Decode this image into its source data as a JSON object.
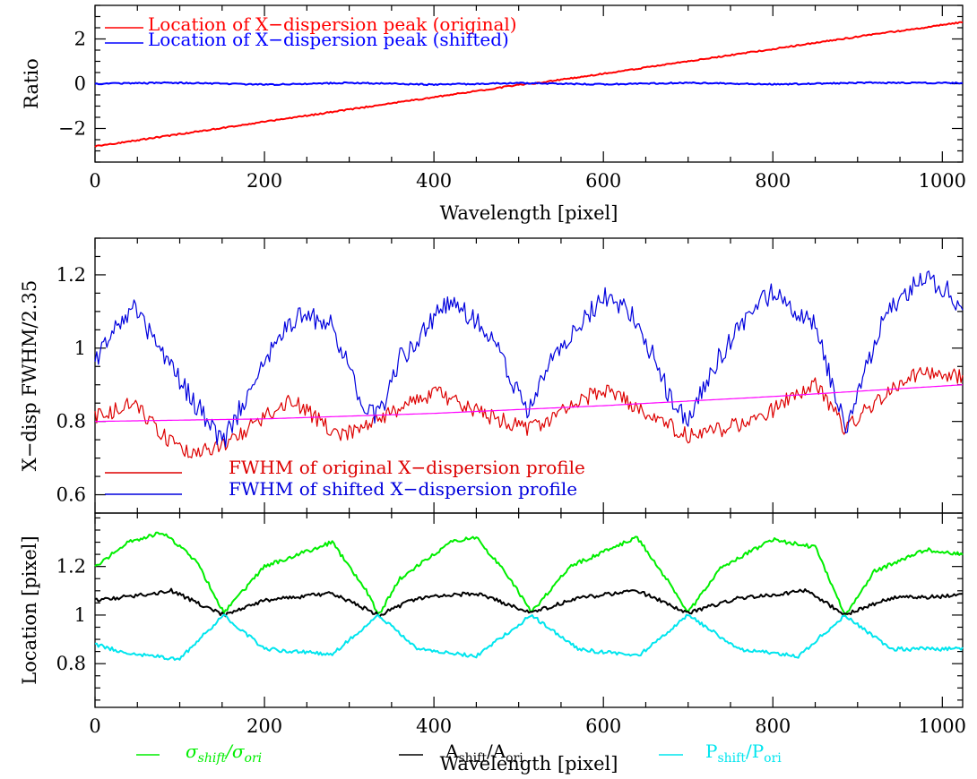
{
  "chart_data": [
    {
      "type": "line",
      "xlabel": "Wavelength [pixel]",
      "ylabel": "Ratio",
      "xlim": [
        0,
        1024
      ],
      "ylim": [
        -3.5,
        3.5
      ],
      "xticks": [
        0,
        200,
        400,
        600,
        800,
        1000
      ],
      "xtick_labels": [
        "0",
        "200",
        "400",
        "600",
        "800",
        "1000"
      ],
      "yticks": [
        -2,
        0,
        2
      ],
      "ytick_labels": [
        "−2",
        "0",
        "2"
      ],
      "legend_position": "top-left",
      "series": [
        {
          "name": "Location of X−dispersion peak (original)",
          "color": "#ff0000",
          "x": [
            0,
            100,
            200,
            300,
            400,
            500,
            515,
            600,
            700,
            800,
            900,
            1024
          ],
          "y": [
            -2.8,
            -2.25,
            -1.7,
            -1.15,
            -0.6,
            -0.05,
            0.0,
            0.45,
            1.0,
            1.55,
            2.1,
            2.75
          ]
        },
        {
          "name": "Location of X−dispersion peak (shifted)",
          "color": "#0000ff",
          "x": [
            0,
            100,
            200,
            300,
            400,
            500,
            600,
            700,
            800,
            900,
            1024
          ],
          "y": [
            0.0,
            0.04,
            -0.04,
            0.04,
            -0.04,
            0.03,
            -0.03,
            0.04,
            -0.03,
            0.04,
            0.03
          ]
        }
      ]
    },
    {
      "type": "line",
      "xlabel": "",
      "ylabel": "X−disp FWHM/2.35",
      "xlim": [
        0,
        1024
      ],
      "ylim": [
        0.55,
        1.3
      ],
      "yticks": [
        0.6,
        0.8,
        1.0,
        1.2
      ],
      "ytick_labels": [
        "0.6",
        "0.8",
        "1",
        "1.2"
      ],
      "legend_position": "bottom-left",
      "series": [
        {
          "name": "FWHM  of original X−dispersion profile",
          "color": "#dd0000",
          "x": [
            0,
            45,
            100,
            150,
            230,
            290,
            330,
            400,
            470,
            515,
            600,
            700,
            780,
            850,
            885,
            960,
            1024
          ],
          "y": [
            0.81,
            0.85,
            0.72,
            0.73,
            0.86,
            0.76,
            0.8,
            0.88,
            0.81,
            0.78,
            0.89,
            0.76,
            0.8,
            0.91,
            0.78,
            0.93,
            0.92
          ]
        },
        {
          "name": "FWHM  of shifted  X−dispersion profile",
          "color": "#0000dd",
          "x": [
            0,
            20,
            45,
            90,
            150,
            200,
            240,
            280,
            315,
            335,
            360,
            420,
            470,
            510,
            540,
            600,
            640,
            680,
            700,
            740,
            800,
            850,
            885,
            930,
            980,
            1024
          ],
          "y": [
            0.96,
            1.05,
            1.11,
            0.95,
            0.74,
            0.96,
            1.1,
            1.06,
            0.86,
            0.81,
            0.97,
            1.14,
            1.03,
            0.82,
            0.97,
            1.14,
            1.08,
            0.86,
            0.8,
            0.99,
            1.16,
            1.06,
            0.78,
            1.08,
            1.2,
            1.12
          ]
        },
        {
          "name": "",
          "color": "#ff00ff",
          "x": [
            0,
            200,
            400,
            600,
            800,
            1024
          ],
          "y": [
            0.8,
            0.807,
            0.822,
            0.843,
            0.868,
            0.9
          ]
        }
      ]
    },
    {
      "type": "line",
      "xlabel": "Wavelength [pixel]",
      "ylabel": "Location [pixel]",
      "xlim": [
        0,
        1024
      ],
      "ylim": [
        0.62,
        1.42
      ],
      "xticks": [
        0,
        200,
        400,
        600,
        800,
        1000
      ],
      "xtick_labels": [
        "0",
        "200",
        "400",
        "600",
        "800",
        "1000"
      ],
      "yticks": [
        0.8,
        1.0,
        1.2
      ],
      "ytick_labels": [
        "0.8",
        "1",
        "1.2"
      ],
      "legend_position": "bottom",
      "legend_labels": {
        "sigma": {
          "main1": "σ",
          "sub1": "shift",
          "mid": "/σ",
          "sub2": "ori"
        },
        "A": {
          "main1": "A",
          "sub1": "shift",
          "mid": "/A",
          "sub2": "ori"
        },
        "P": {
          "main1": "P",
          "sub1": "shift",
          "mid": "/P",
          "sub2": "ori"
        }
      },
      "series": [
        {
          "name": "σshift/σori",
          "color": "#00ee00",
          "x": [
            0,
            40,
            80,
            120,
            152,
            200,
            280,
            320,
            335,
            360,
            420,
            450,
            490,
            515,
            560,
            640,
            680,
            700,
            740,
            800,
            850,
            885,
            920,
            980,
            1024
          ],
          "y": [
            1.2,
            1.3,
            1.34,
            1.22,
            1.01,
            1.2,
            1.3,
            1.1,
            1.0,
            1.15,
            1.3,
            1.32,
            1.15,
            1.01,
            1.2,
            1.32,
            1.12,
            1.01,
            1.2,
            1.31,
            1.28,
            1.0,
            1.18,
            1.27,
            1.25
          ]
        },
        {
          "name": "Ashift/Aori",
          "color": "#000000",
          "x": [
            0,
            50,
            90,
            152,
            200,
            280,
            335,
            380,
            450,
            515,
            570,
            640,
            700,
            760,
            840,
            885,
            940,
            1024
          ],
          "y": [
            1.06,
            1.08,
            1.1,
            1.0,
            1.06,
            1.09,
            1.0,
            1.07,
            1.09,
            1.01,
            1.07,
            1.1,
            1.01,
            1.07,
            1.1,
            1.0,
            1.07,
            1.08
          ]
        },
        {
          "name": "Pshift/Pori",
          "color": "#00e5ee",
          "x": [
            0,
            40,
            100,
            152,
            200,
            280,
            335,
            380,
            450,
            515,
            570,
            640,
            700,
            760,
            830,
            885,
            940,
            1024
          ],
          "y": [
            0.88,
            0.84,
            0.82,
            1.0,
            0.86,
            0.84,
            1.0,
            0.86,
            0.83,
            1.0,
            0.86,
            0.83,
            1.0,
            0.86,
            0.83,
            1.0,
            0.86,
            0.86
          ]
        }
      ]
    }
  ]
}
